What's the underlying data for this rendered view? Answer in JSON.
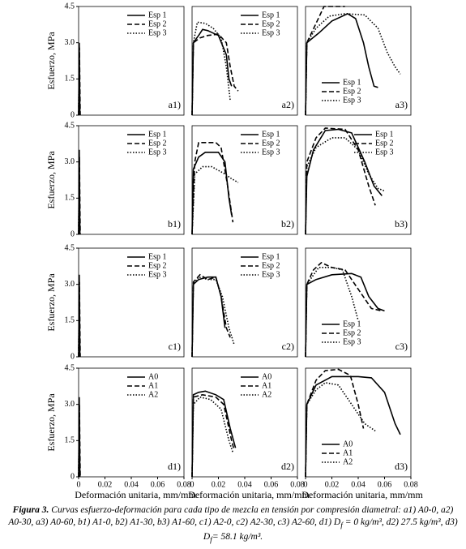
{
  "chart_data": [
    {
      "type": "line",
      "label": "a1)",
      "xlim": [
        0,
        0.08
      ],
      "ylim": [
        0,
        4.5
      ],
      "ylabel": "Esfuerzo, MPa",
      "legend": "upper right",
      "yticks": [
        {
          "value": 0,
          "label": "0"
        },
        {
          "value": 1.5,
          "label": "1.5"
        },
        {
          "value": 3,
          "label": "3.0"
        },
        {
          "value": 4.5,
          "label": "4.5"
        }
      ],
      "series": [
        {
          "name": "Esp 1",
          "style": "solid",
          "color": "#000000",
          "x": [
            0,
            0.0005,
            0.001
          ],
          "values": [
            0,
            3.0,
            0
          ]
        },
        {
          "name": "Esp 2",
          "style": "dashed",
          "color": "#000000",
          "x": [
            0,
            0.0006,
            0.0012
          ],
          "values": [
            0,
            2.8,
            0
          ]
        },
        {
          "name": "Esp 3",
          "style": "dotted",
          "color": "#000000",
          "x": [
            0,
            0.0004,
            0.0008
          ],
          "values": [
            0,
            2.6,
            0
          ]
        }
      ]
    },
    {
      "type": "line",
      "label": "a2)",
      "xlim": [
        0,
        0.08
      ],
      "ylim": [
        0,
        4.5
      ],
      "legend": "upper right",
      "series": [
        {
          "name": "Esp 1",
          "style": "solid",
          "color": "#000000",
          "x": [
            0,
            0.001,
            0.005,
            0.008,
            0.012,
            0.016,
            0.02,
            0.026,
            0.028,
            0.03
          ],
          "values": [
            0,
            3.0,
            3.3,
            3.55,
            3.5,
            3.4,
            3.3,
            2.5,
            1.5,
            1.2
          ]
        },
        {
          "name": "Esp 2",
          "style": "dashed",
          "color": "#000000",
          "x": [
            0,
            0.001,
            0.006,
            0.012,
            0.02,
            0.026,
            0.029,
            0.032,
            0.035
          ],
          "values": [
            0,
            3.0,
            3.2,
            3.3,
            3.35,
            3.0,
            2.0,
            1.2,
            1.0
          ]
        },
        {
          "name": "Esp 3",
          "style": "dotted",
          "color": "#000000",
          "x": [
            0,
            0.001,
            0.004,
            0.01,
            0.016,
            0.022,
            0.026,
            0.029
          ],
          "values": [
            0,
            3.0,
            3.85,
            3.8,
            3.6,
            3.2,
            2.0,
            0.6
          ]
        }
      ]
    },
    {
      "type": "line",
      "label": "a3)",
      "xlim": [
        0,
        0.08
      ],
      "ylim": [
        0,
        4.5
      ],
      "legend": "lower center",
      "series": [
        {
          "name": "Esp 1",
          "style": "solid",
          "color": "#000000",
          "x": [
            0,
            0.001,
            0.01,
            0.02,
            0.032,
            0.038,
            0.044,
            0.048,
            0.052,
            0.055
          ],
          "values": [
            0,
            3.0,
            3.4,
            3.9,
            4.2,
            4.0,
            3.0,
            2.0,
            1.2,
            1.15
          ]
        },
        {
          "name": "Esp 2",
          "style": "dashed",
          "color": "#000000",
          "x": [
            0,
            0.001,
            0.008,
            0.014,
            0.03
          ],
          "values": [
            0,
            3.0,
            3.8,
            4.5,
            4.5
          ]
        },
        {
          "name": "Esp 3",
          "style": "dotted",
          "color": "#000000",
          "x": [
            0,
            0.001,
            0.008,
            0.018,
            0.03,
            0.045,
            0.055,
            0.062,
            0.068,
            0.072
          ],
          "values": [
            0,
            3.0,
            3.6,
            4.1,
            4.2,
            4.15,
            3.6,
            2.6,
            2.0,
            1.7
          ]
        }
      ]
    },
    {
      "type": "line",
      "label": "b1)",
      "xlim": [
        0,
        0.08
      ],
      "ylim": [
        0,
        4.5
      ],
      "ylabel": "Esfuerzo, MPa",
      "legend": "upper right",
      "yticks": [
        {
          "value": 0,
          "label": "0"
        },
        {
          "value": 1.5,
          "label": "1.5"
        },
        {
          "value": 3,
          "label": "3.0"
        },
        {
          "value": 4.5,
          "label": "4.5"
        }
      ],
      "series": [
        {
          "name": "Esp 1",
          "style": "solid",
          "color": "#000000",
          "x": [
            0,
            0.0005,
            0.001
          ],
          "values": [
            0,
            3.5,
            0
          ]
        },
        {
          "name": "Esp 2",
          "style": "dashed",
          "color": "#000000",
          "x": [
            0,
            0.0006,
            0.0012
          ],
          "values": [
            0,
            3.2,
            0
          ]
        },
        {
          "name": "Esp 3",
          "style": "dotted",
          "color": "#000000",
          "x": [
            0,
            0.0004,
            0.0008
          ],
          "values": [
            0,
            2.9,
            0
          ]
        }
      ]
    },
    {
      "type": "line",
      "label": "b2)",
      "xlim": [
        0,
        0.08
      ],
      "ylim": [
        0,
        4.5
      ],
      "legend": "upper right",
      "series": [
        {
          "name": "Esp 1",
          "style": "solid",
          "color": "#000000",
          "x": [
            0,
            0.001,
            0.005,
            0.01,
            0.02,
            0.025,
            0.028,
            0.03
          ],
          "values": [
            0,
            2.7,
            3.2,
            3.4,
            3.4,
            3.0,
            1.5,
            0.8
          ]
        },
        {
          "name": "Esp 2",
          "style": "dashed",
          "color": "#000000",
          "x": [
            0,
            0.002,
            0.005,
            0.018,
            0.022,
            0.027,
            0.031
          ],
          "values": [
            0,
            3.0,
            3.8,
            3.8,
            3.6,
            2.0,
            0.5
          ]
        },
        {
          "name": "Esp 3",
          "style": "dotted",
          "color": "#000000",
          "x": [
            0,
            0.002,
            0.008,
            0.015,
            0.025,
            0.03,
            0.035
          ],
          "values": [
            0,
            2.5,
            2.8,
            2.8,
            2.5,
            2.3,
            2.15
          ]
        }
      ]
    },
    {
      "type": "line",
      "label": "b3)",
      "xlim": [
        0,
        0.08
      ],
      "ylim": [
        0,
        4.5
      ],
      "legend": "upper right",
      "series": [
        {
          "name": "Esp 1",
          "style": "solid",
          "color": "#000000",
          "x": [
            0,
            0.001,
            0.006,
            0.015,
            0.025,
            0.035,
            0.045,
            0.052,
            0.058
          ],
          "values": [
            0,
            2.4,
            3.5,
            4.3,
            4.35,
            4.2,
            3.0,
            2.0,
            1.6
          ]
        },
        {
          "name": "Esp 2",
          "style": "dashed",
          "color": "#000000",
          "x": [
            0,
            0.001,
            0.008,
            0.015,
            0.03,
            0.04,
            0.048,
            0.053
          ],
          "values": [
            0,
            3.0,
            4.0,
            4.4,
            4.35,
            3.5,
            2.0,
            1.2
          ]
        },
        {
          "name": "Esp 3",
          "style": "dotted",
          "color": "#000000",
          "x": [
            0,
            0.001,
            0.008,
            0.02,
            0.03,
            0.04,
            0.048,
            0.055,
            0.06
          ],
          "values": [
            0,
            2.8,
            3.6,
            4.0,
            4.0,
            3.5,
            2.5,
            1.9,
            1.8
          ]
        }
      ]
    },
    {
      "type": "line",
      "label": "c1)",
      "xlim": [
        0,
        0.08
      ],
      "ylim": [
        0,
        4.5
      ],
      "ylabel": "Esfuerzo, MPa",
      "legend": "upper right",
      "yticks": [
        {
          "value": 0,
          "label": "0"
        },
        {
          "value": 1.5,
          "label": "1.5"
        },
        {
          "value": 3,
          "label": "3.0"
        },
        {
          "value": 4.5,
          "label": "4.5"
        }
      ],
      "series": [
        {
          "name": "Esp 1",
          "style": "solid",
          "color": "#000000",
          "x": [
            0,
            0.0005,
            0.001
          ],
          "values": [
            0,
            3.4,
            0
          ]
        },
        {
          "name": "Esp 2",
          "style": "dashed",
          "color": "#000000",
          "x": [
            0,
            0.0006,
            0.0012
          ],
          "values": [
            0,
            3.1,
            0
          ]
        },
        {
          "name": "Esp 3",
          "style": "dotted",
          "color": "#000000",
          "x": [
            0,
            0.0004,
            0.0008
          ],
          "values": [
            0,
            2.9,
            0
          ]
        }
      ]
    },
    {
      "type": "line",
      "label": "c2)",
      "xlim": [
        0,
        0.08
      ],
      "ylim": [
        0,
        4.5
      ],
      "legend": "upper right",
      "series": [
        {
          "name": "Esp 1",
          "style": "solid",
          "color": "#000000",
          "x": [
            0,
            0.001,
            0.005,
            0.012,
            0.018,
            0.022,
            0.025
          ],
          "values": [
            0,
            3.0,
            3.2,
            3.3,
            3.3,
            2.5,
            1.2
          ]
        },
        {
          "name": "Esp 2",
          "style": "dashed",
          "color": "#000000",
          "x": [
            0,
            0.001,
            0.006,
            0.012,
            0.018,
            0.022,
            0.026,
            0.029
          ],
          "values": [
            0,
            3.1,
            3.4,
            3.2,
            3.3,
            2.5,
            1.2,
            0.8
          ]
        },
        {
          "name": "Esp 3",
          "style": "dotted",
          "color": "#000000",
          "x": [
            0,
            0.001,
            0.005,
            0.012,
            0.018,
            0.023,
            0.028,
            0.032
          ],
          "values": [
            0,
            3.0,
            3.3,
            3.2,
            3.2,
            2.5,
            1.2,
            0.5
          ]
        }
      ]
    },
    {
      "type": "line",
      "label": "c3)",
      "xlim": [
        0,
        0.08
      ],
      "ylim": [
        0,
        4.5
      ],
      "legend": "lower center",
      "series": [
        {
          "name": "Esp 1",
          "style": "solid",
          "color": "#000000",
          "x": [
            0,
            0.001,
            0.008,
            0.02,
            0.035,
            0.042,
            0.048,
            0.055,
            0.06
          ],
          "values": [
            0,
            3.0,
            3.2,
            3.4,
            3.45,
            3.3,
            2.5,
            2.0,
            1.9
          ]
        },
        {
          "name": "Esp 2",
          "style": "dashed",
          "color": "#000000",
          "x": [
            0,
            0.001,
            0.006,
            0.012,
            0.02,
            0.03,
            0.04,
            0.05,
            0.058
          ],
          "values": [
            0,
            3.0,
            3.6,
            3.9,
            3.7,
            3.6,
            2.8,
            2.0,
            1.9
          ]
        },
        {
          "name": "Esp 3",
          "style": "dotted",
          "color": "#000000",
          "x": [
            0,
            0.001,
            0.01,
            0.02,
            0.028,
            0.035,
            0.04
          ],
          "values": [
            0,
            3.0,
            3.7,
            3.7,
            3.6,
            2.5,
            1.5
          ]
        }
      ]
    },
    {
      "type": "line",
      "label": "d1)",
      "xlim": [
        0,
        0.08
      ],
      "ylim": [
        0,
        4.5
      ],
      "ylabel": "Esfuerzo, MPa",
      "xlabel": "Deformación unitaria, mm/mm",
      "legend": "upper right",
      "yticks": [
        {
          "value": 0,
          "label": "0"
        },
        {
          "value": 1.5,
          "label": "1.5"
        },
        {
          "value": 3,
          "label": "3.0"
        },
        {
          "value": 4.5,
          "label": "4.5"
        }
      ],
      "xticks": [
        0,
        0.02,
        0.04,
        0.06,
        0.08
      ],
      "series": [
        {
          "name": "A0",
          "style": "solid",
          "color": "#000000",
          "x": [
            0,
            0.0005,
            0.001
          ],
          "values": [
            0,
            3.3,
            0
          ]
        },
        {
          "name": "A1",
          "style": "dashed",
          "color": "#000000",
          "x": [
            0,
            0.0006,
            0.0012
          ],
          "values": [
            0,
            3.0,
            0
          ]
        },
        {
          "name": "A2",
          "style": "dotted",
          "color": "#000000",
          "x": [
            0,
            0.0004,
            0.0008
          ],
          "values": [
            0,
            2.8,
            0
          ]
        }
      ]
    },
    {
      "type": "line",
      "label": "d2)",
      "xlim": [
        0,
        0.08
      ],
      "ylim": [
        0,
        4.5
      ],
      "xlabel": "Deformación unitaria, mm/mm",
      "legend": "upper right",
      "xticks": [
        0,
        0.02,
        0.04,
        0.06,
        0.08
      ],
      "series": [
        {
          "name": "A0",
          "style": "solid",
          "color": "#000000",
          "x": [
            0,
            0.001,
            0.005,
            0.01,
            0.018,
            0.024,
            0.029,
            0.033
          ],
          "values": [
            0,
            3.4,
            3.5,
            3.55,
            3.4,
            3.2,
            2.0,
            1.2
          ]
        },
        {
          "name": "A1",
          "style": "dashed",
          "color": "#000000",
          "x": [
            0,
            0.001,
            0.008,
            0.018,
            0.024,
            0.03,
            0.032
          ],
          "values": [
            0,
            3.3,
            3.4,
            3.3,
            3.0,
            1.5,
            1.1
          ]
        },
        {
          "name": "A2",
          "style": "dotted",
          "color": "#000000",
          "x": [
            0,
            0.001,
            0.006,
            0.014,
            0.022,
            0.028,
            0.031
          ],
          "values": [
            0,
            3.0,
            3.3,
            3.2,
            2.8,
            1.5,
            1.0
          ]
        }
      ]
    },
    {
      "type": "line",
      "label": "d3)",
      "xlim": [
        0,
        0.08
      ],
      "ylim": [
        0,
        4.5
      ],
      "xlabel": "Deformación unitaria, mm/mm",
      "legend": "lower center",
      "xticks": [
        0,
        0.02,
        0.04,
        0.06,
        0.08
      ],
      "series": [
        {
          "name": "A0",
          "style": "solid",
          "color": "#000000",
          "x": [
            0,
            0.001,
            0.008,
            0.02,
            0.04,
            0.05,
            0.06,
            0.068,
            0.072
          ],
          "values": [
            0,
            3.0,
            3.8,
            4.15,
            4.15,
            4.1,
            3.5,
            2.2,
            1.75
          ]
        },
        {
          "name": "A1",
          "style": "dashed",
          "color": "#000000",
          "x": [
            0,
            0.001,
            0.008,
            0.015,
            0.025,
            0.034,
            0.04,
            0.044
          ],
          "values": [
            0,
            3.0,
            4.0,
            4.4,
            4.45,
            4.2,
            3.0,
            2.0
          ]
        },
        {
          "name": "A2",
          "style": "dotted",
          "color": "#000000",
          "x": [
            0,
            0.001,
            0.008,
            0.015,
            0.025,
            0.035,
            0.045,
            0.053
          ],
          "values": [
            0,
            3.0,
            3.6,
            3.9,
            3.8,
            3.0,
            2.2,
            1.9
          ]
        }
      ]
    }
  ],
  "caption": {
    "label": "Figura 3.",
    "text_1": "Curvas esfuerzo-deformación para cada tipo de mezcla en tensión por compresión diametral: a1) A0-0, a2) A0-30, a3) A0-60, b1) A1-0, b2) A1-30, b3) A1-60, c1) A2-0, c2) A2-30, c3) A2-60, d1) D",
    "sub_1": "f",
    "text_2": " = 0 kg/m³, d2) 27.5 kg/m³, d3) D",
    "sub_2": "f",
    "text_3": "= 58.1 kg/m³."
  }
}
